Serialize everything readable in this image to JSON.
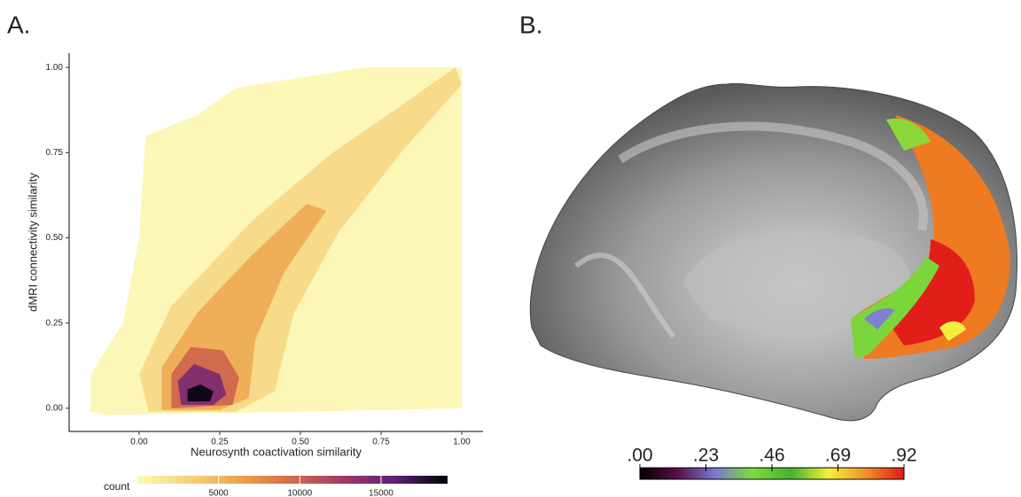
{
  "chart_data": [
    {
      "type": "hexbin",
      "panel_label": "A.",
      "xlabel": "Neurosynth coactivation similarity",
      "ylabel": "dMRI connectivity similarity",
      "xlim": [
        -0.217,
        1.066
      ],
      "ylim": [
        -0.068,
        1.042
      ],
      "xticks": [
        {
          "value": 0,
          "label": "0.00"
        },
        {
          "value": 0.25,
          "label": "0.25"
        },
        {
          "value": 0.5,
          "label": "0.50"
        },
        {
          "value": 0.75,
          "label": "0.75"
        },
        {
          "value": 1,
          "label": "1.00"
        }
      ],
      "yticks": [
        {
          "value": 0,
          "label": "0.00"
        },
        {
          "value": 0.25,
          "label": "0.25"
        },
        {
          "value": 0.5,
          "label": "0.50"
        },
        {
          "value": 0.75,
          "label": "0.75"
        },
        {
          "value": 1,
          "label": "1.00"
        }
      ],
      "legend_title": "count",
      "legend_lim": [
        0,
        19100
      ],
      "legend_ticks": [
        5000,
        10000,
        15000
      ],
      "colormap": [
        "#fcf8bb",
        "#f6d27c",
        "#eca24a",
        "#d06a4e",
        "#9c3a68",
        "#5b1f78",
        "#000004"
      ],
      "regions": [
        {
          "count": 200,
          "points": [
            [
              -0.15,
              -0.01
            ],
            [
              -0.15,
              0.1
            ],
            [
              -0.05,
              0.25
            ],
            [
              0.0,
              0.5
            ],
            [
              0.02,
              0.8
            ],
            [
              0.18,
              0.86
            ],
            [
              0.3,
              0.94
            ],
            [
              0.5,
              0.97
            ],
            [
              0.7,
              1.0
            ],
            [
              1.0,
              1.0
            ],
            [
              1.0,
              0.0
            ],
            [
              0.5,
              -0.01
            ],
            [
              -0.1,
              -0.02
            ]
          ]
        },
        {
          "count": 2500,
          "points": [
            [
              0.03,
              -0.01
            ],
            [
              0.0,
              0.1
            ],
            [
              0.1,
              0.3
            ],
            [
              0.35,
              0.55
            ],
            [
              0.6,
              0.75
            ],
            [
              0.8,
              0.88
            ],
            [
              0.98,
              1.0
            ],
            [
              1.0,
              0.95
            ],
            [
              0.82,
              0.76
            ],
            [
              0.62,
              0.52
            ],
            [
              0.48,
              0.28
            ],
            [
              0.42,
              0.05
            ],
            [
              0.3,
              -0.01
            ]
          ]
        },
        {
          "count": 5500,
          "points": [
            [
              0.07,
              -0.005
            ],
            [
              0.07,
              0.12
            ],
            [
              0.18,
              0.28
            ],
            [
              0.35,
              0.45
            ],
            [
              0.52,
              0.6
            ],
            [
              0.58,
              0.58
            ],
            [
              0.45,
              0.4
            ],
            [
              0.36,
              0.2
            ],
            [
              0.34,
              0.03
            ],
            [
              0.25,
              -0.005
            ]
          ]
        },
        {
          "count": 9500,
          "points": [
            [
              0.1,
              0.0
            ],
            [
              0.1,
              0.1
            ],
            [
              0.16,
              0.18
            ],
            [
              0.26,
              0.17
            ],
            [
              0.31,
              0.09
            ],
            [
              0.29,
              0.01
            ]
          ]
        },
        {
          "count": 14000,
          "points": [
            [
              0.13,
              0.01
            ],
            [
              0.12,
              0.08
            ],
            [
              0.17,
              0.13
            ],
            [
              0.25,
              0.1
            ],
            [
              0.27,
              0.04
            ],
            [
              0.23,
              0.01
            ]
          ]
        },
        {
          "count": 18500,
          "points": [
            [
              0.15,
              0.02
            ],
            [
              0.15,
              0.055
            ],
            [
              0.19,
              0.07
            ],
            [
              0.23,
              0.05
            ],
            [
              0.22,
              0.02
            ]
          ]
        }
      ]
    },
    {
      "type": "colorbar",
      "panel_label": "B.",
      "lim": [
        0,
        0.92
      ],
      "ticks": [
        {
          "value": 0,
          "label": ".00"
        },
        {
          "value": 0.23,
          "label": ".23"
        },
        {
          "value": 0.46,
          "label": ".46"
        },
        {
          "value": 0.69,
          "label": ".69"
        },
        {
          "value": 0.92,
          "label": ".92"
        }
      ],
      "colormap": [
        "#000000",
        "#5a1048",
        "#7a7ad0",
        "#7ddc3c",
        "#48b030",
        "#f2f23a",
        "#f0902a",
        "#e01818"
      ]
    }
  ]
}
